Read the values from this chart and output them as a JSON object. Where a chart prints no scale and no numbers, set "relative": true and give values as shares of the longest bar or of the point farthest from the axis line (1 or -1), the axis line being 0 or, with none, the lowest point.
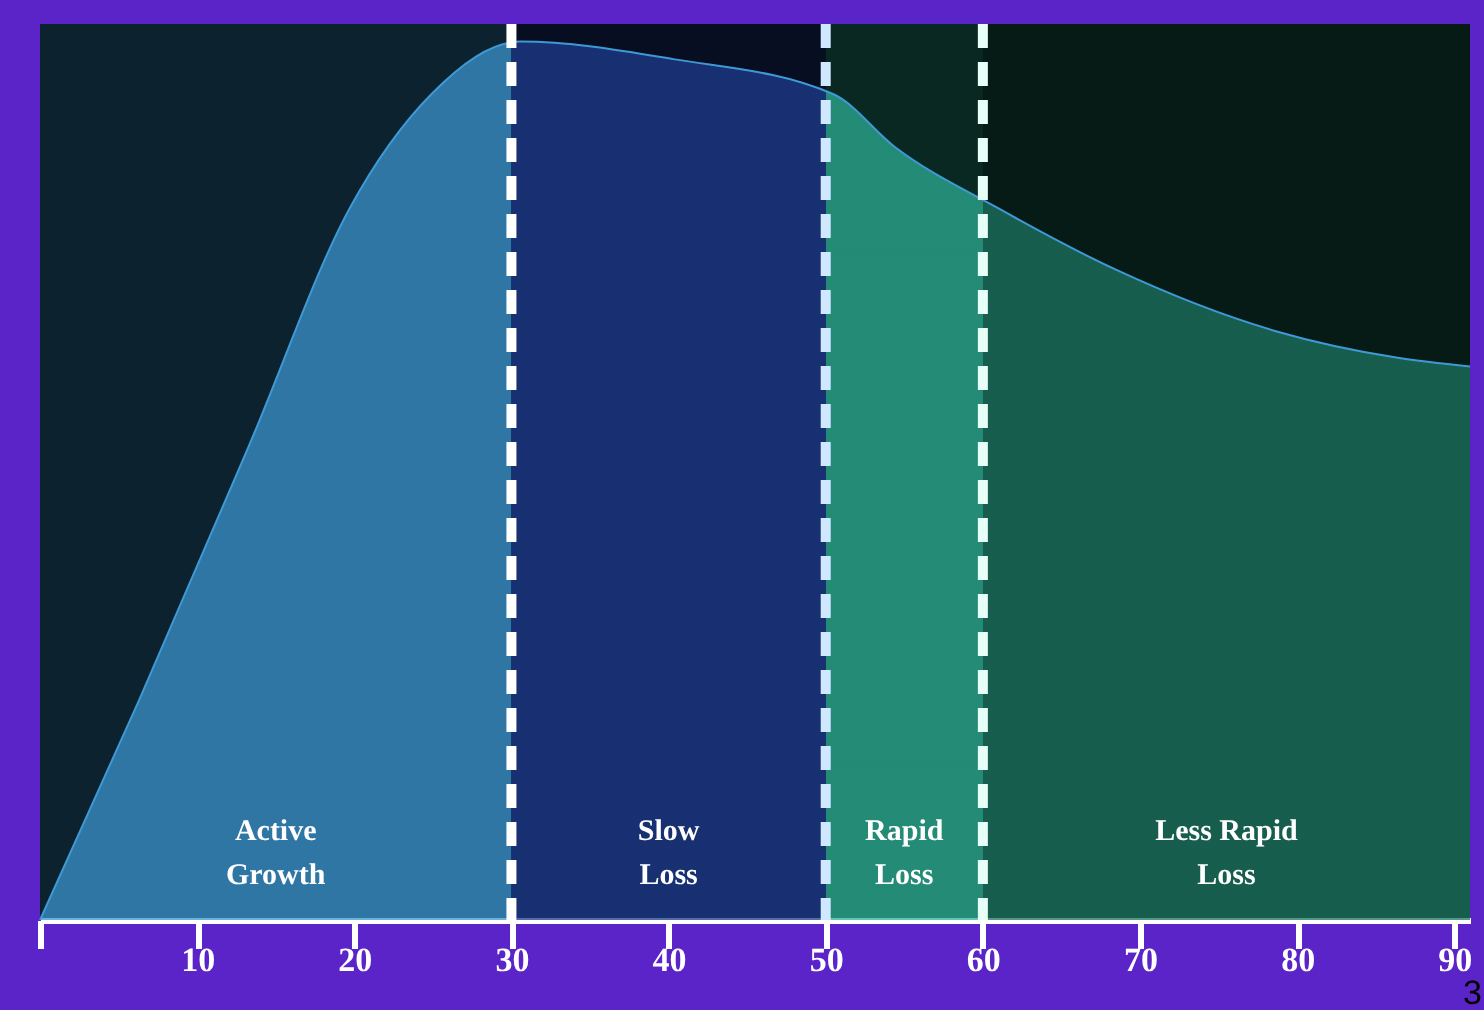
{
  "chart_data": {
    "type": "area",
    "relative": true,
    "x": [
      0,
      6.3,
      13.3,
      19.7,
      24.9,
      30.6,
      40.3,
      50.5,
      54.4,
      61,
      68.5,
      78.7,
      86.4,
      91
    ],
    "series": [
      {
        "color": "#3d9ad6",
        "values": [
          0,
          0.25,
          0.54,
          0.81,
          0.94,
          1.0,
          0.98,
          0.94,
          0.88,
          0.81,
          0.74,
          0.67,
          0.64,
          0.63
        ]
      }
    ],
    "xlim": [
      0,
      91
    ],
    "xticks": [
      {
        "value": 0,
        "label": null
      },
      10,
      20,
      30,
      40,
      50,
      60,
      70,
      80,
      90
    ],
    "bands": [
      {
        "axis": "x",
        "from": 0,
        "to": 30,
        "label": "Active\nGrowth",
        "color": "#3d9ad6"
      },
      {
        "axis": "x",
        "from": 30,
        "to": 50,
        "label": "Slow\nLoss",
        "color": "#1f3f95"
      },
      {
        "axis": "x",
        "from": 50,
        "to": 60,
        "label": "Rapid\nLoss",
        "color": "#2fb59a"
      },
      {
        "axis": "x",
        "from": 60,
        "to": 91,
        "label": "Less Rapid\nLoss",
        "color": "#1e7a66"
      }
    ],
    "ref_lines": [
      {
        "axis": "x",
        "value": 30,
        "color": "#ffffff",
        "line_style": "dashed"
      },
      {
        "axis": "x",
        "value": 50,
        "color": "#cfe8ff",
        "line_style": "dashed"
      },
      {
        "axis": "x",
        "value": 60,
        "color": "#e8fff8",
        "line_style": "dashed"
      }
    ],
    "annotations": [
      "3"
    ],
    "grid": false
  }
}
